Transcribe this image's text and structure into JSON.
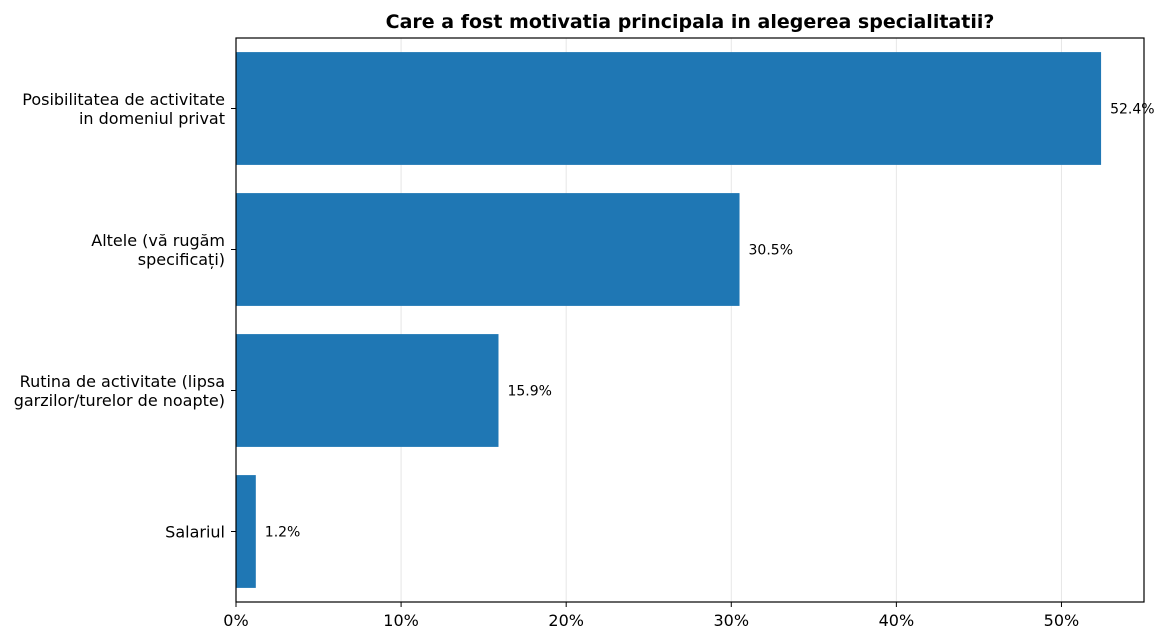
{
  "chart_data": {
    "type": "bar",
    "orientation": "horizontal",
    "title": "Care a fost motivatia principala in alegerea specialitatii?",
    "xlabel": "",
    "ylabel": "",
    "categories": [
      [
        "Posibilitatea de activitate",
        "in domeniul privat"
      ],
      [
        "Altele (vă rugăm",
        "specificați)"
      ],
      [
        "Rutina de activitate (lipsa",
        "garzilor/turelor de noapte)"
      ],
      [
        "Salariul"
      ]
    ],
    "values": [
      52.4,
      30.5,
      15.9,
      1.2
    ],
    "data_labels": [
      "52.4%",
      "30.5%",
      "15.9%",
      "1.2%"
    ],
    "xlim": [
      0,
      55
    ],
    "xticks": [
      0,
      10,
      20,
      30,
      40,
      50
    ],
    "xtick_labels": [
      "0%",
      "10%",
      "20%",
      "30%",
      "40%",
      "50%"
    ],
    "grid": "vertical",
    "bar_color": "#1f77b4",
    "grid_color": "#e6e6e6",
    "axis_color": "#000000"
  }
}
